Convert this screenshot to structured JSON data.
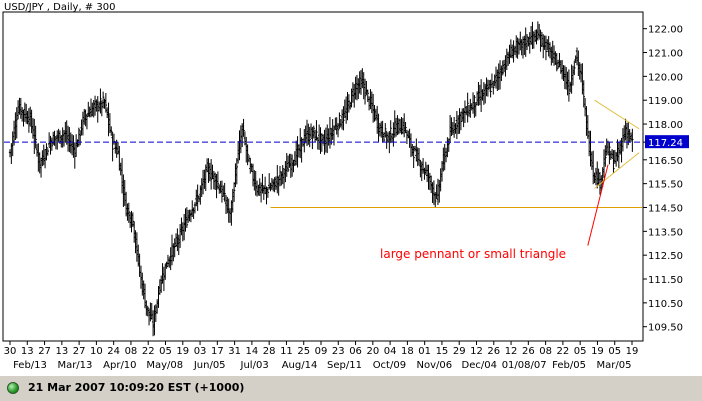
{
  "title": "USD/JPY , Daily, # 300",
  "status": {
    "text": "21 Mar 2007 10:09:20 EST (+1000)",
    "indicator_color": "#2e9e2e"
  },
  "colors": {
    "candles": "#000000",
    "dashed_line": "#0000cc",
    "support_line": "#e0a000",
    "pennant": "#e0c040",
    "arrow": "#ff0000",
    "annotation_text": "#ff0000"
  },
  "chart_data": {
    "type": "ohlc-bar",
    "instrument": "USD/JPY",
    "interval": "Daily",
    "ylim": [
      108.9,
      122.7
    ],
    "y_ticks": [
      "122.00",
      "121.00",
      "120.00",
      "119.00",
      "118.00",
      "117.24",
      "116.50",
      "115.50",
      "114.50",
      "113.50",
      "112.50",
      "111.50",
      "110.50",
      "109.50"
    ],
    "last_price": 117.24,
    "x_day_ticks": [
      "30",
      "13",
      "27",
      "13",
      "27",
      "10",
      "24",
      "08",
      "22",
      "05",
      "19",
      "03",
      "17",
      "31",
      "14",
      "28",
      "11",
      "25",
      "09",
      "23",
      "06",
      "20",
      "04",
      "18",
      "01",
      "15",
      "29",
      "12",
      "26",
      "12",
      "26",
      "08",
      "22",
      "05",
      "19",
      "05",
      "19"
    ],
    "x_month_ticks": [
      "Feb/13",
      "Mar/13",
      "Apr/10",
      "May/08",
      "Jun/05",
      "Jul/03",
      "Aug/14",
      "Sep/11",
      "Oct/09",
      "Nov/06",
      "Dec/04",
      "01/08/07",
      "Feb/05",
      "Mar/05"
    ],
    "close_path": [
      [
        0,
        116.8
      ],
      [
        6,
        118.7
      ],
      [
        15,
        118.2
      ],
      [
        22,
        116.3
      ],
      [
        30,
        117.3
      ],
      [
        40,
        117.6
      ],
      [
        48,
        116.9
      ],
      [
        55,
        118.3
      ],
      [
        62,
        118.7
      ],
      [
        70,
        118.9
      ],
      [
        76,
        117.2
      ],
      [
        80,
        116.8
      ],
      [
        83,
        115.6
      ],
      [
        86,
        114.5
      ],
      [
        91,
        113.9
      ],
      [
        96,
        111.8
      ],
      [
        101,
        110.3
      ],
      [
        106,
        109.6
      ],
      [
        111,
        111.3
      ],
      [
        117,
        112.3
      ],
      [
        125,
        113.2
      ],
      [
        133,
        114.3
      ],
      [
        140,
        115.0
      ],
      [
        146,
        116.1
      ],
      [
        152,
        115.7
      ],
      [
        158,
        115.0
      ],
      [
        163,
        114.1
      ],
      [
        168,
        116.4
      ],
      [
        172,
        117.8
      ],
      [
        177,
        116.3
      ],
      [
        183,
        115.3
      ],
      [
        189,
        115.2
      ],
      [
        196,
        115.5
      ],
      [
        203,
        116.0
      ],
      [
        211,
        116.6
      ],
      [
        219,
        117.5
      ],
      [
        225,
        117.6
      ],
      [
        232,
        117.2
      ],
      [
        240,
        117.8
      ],
      [
        248,
        118.4
      ],
      [
        256,
        119.6
      ],
      [
        261,
        119.7
      ],
      [
        268,
        118.7
      ],
      [
        274,
        117.8
      ],
      [
        280,
        117.4
      ],
      [
        286,
        117.9
      ],
      [
        292,
        117.9
      ],
      [
        296,
        117.2
      ],
      [
        303,
        116.4
      ],
      [
        310,
        115.8
      ],
      [
        316,
        114.8
      ],
      [
        320,
        116.2
      ],
      [
        326,
        117.6
      ],
      [
        333,
        118.3
      ],
      [
        341,
        118.7
      ],
      [
        349,
        119.2
      ],
      [
        357,
        119.6
      ],
      [
        365,
        120.4
      ],
      [
        372,
        121.1
      ],
      [
        379,
        121.3
      ],
      [
        385,
        121.6
      ],
      [
        391,
        121.7
      ],
      [
        398,
        121.2
      ],
      [
        403,
        120.7
      ],
      [
        409,
        120.3
      ],
      [
        414,
        119.5
      ],
      [
        419,
        120.9
      ],
      [
        423,
        120.0
      ],
      [
        428,
        117.5
      ],
      [
        432,
        116.0
      ],
      [
        437,
        115.6
      ],
      [
        442,
        117.0
      ],
      [
        447,
        116.4
      ],
      [
        451,
        116.8
      ],
      [
        456,
        117.8
      ],
      [
        461,
        117.24
      ]
    ],
    "lines": [
      {
        "kind": "dashed-horizontal",
        "y": 117.24
      },
      {
        "kind": "support-horizontal",
        "y": 114.5,
        "x_start_bar": 193
      },
      {
        "kind": "pennant-upper",
        "from": [
          433,
          119.0
        ],
        "to": [
          466,
          117.8
        ]
      },
      {
        "kind": "pennant-lower",
        "from": [
          433,
          115.3
        ],
        "to": [
          466,
          116.8
        ]
      },
      {
        "kind": "arrow",
        "from": [
          428,
          112.9
        ],
        "to": [
          443,
          116.3
        ]
      }
    ],
    "annotation": "large pennant or small triangle"
  }
}
